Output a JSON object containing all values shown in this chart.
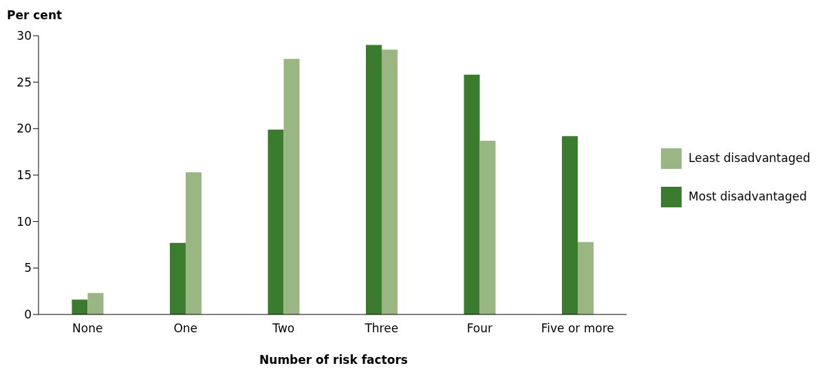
{
  "chart_data": {
    "type": "bar",
    "ylabel": "Per cent",
    "xlabel": "Number of risk factors",
    "categories": [
      "None",
      "One",
      "Two",
      "Three",
      "Four",
      "Five or more"
    ],
    "series": [
      {
        "name": "Most disadvantaged",
        "color": "#3a7b2d",
        "values": [
          1.6,
          7.7,
          19.9,
          29.0,
          25.8,
          19.2
        ]
      },
      {
        "name": "Least disadvantaged",
        "color": "#9ab783",
        "values": [
          2.3,
          15.3,
          27.5,
          28.5,
          18.7,
          7.8
        ]
      }
    ],
    "ylim": [
      0,
      30
    ],
    "yticks": [
      0,
      5,
      10,
      15,
      20,
      25,
      30
    ],
    "grid": false,
    "legend": "right"
  }
}
